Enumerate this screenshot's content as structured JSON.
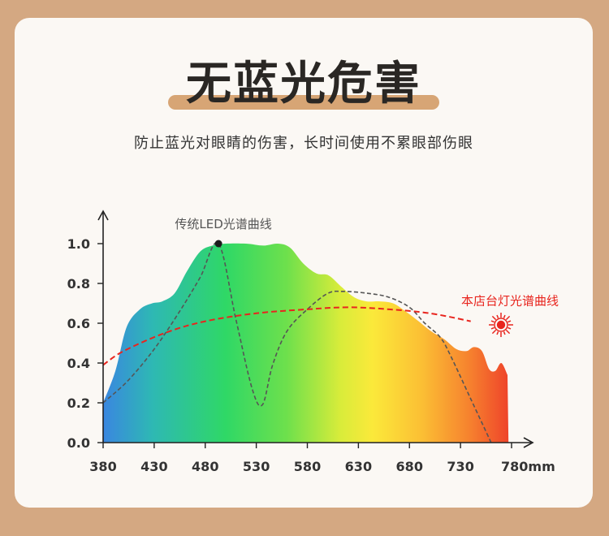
{
  "heading": {
    "title": "无蓝光危害",
    "subtitle": "防止蓝光对眼睛的伤害，长时间使用不累眼部伤眼"
  },
  "colors": {
    "background": "#d4a882",
    "card": "#fbf8f4",
    "title_accent": "#d7a575",
    "store_curve": "#e8251e",
    "led_curve": "#555555",
    "sun_icon": "#e8251e"
  },
  "chart_data": {
    "type": "area",
    "title": "",
    "xlabel": "",
    "ylabel": "",
    "x_unit": "mm",
    "xlim": [
      380,
      780
    ],
    "ylim": [
      0,
      1.0
    ],
    "x_ticks": [
      380,
      430,
      480,
      530,
      580,
      630,
      680,
      730,
      780
    ],
    "x_tick_labels": [
      "380",
      "430",
      "480",
      "530",
      "580",
      "630",
      "680",
      "730",
      "780mm"
    ],
    "y_ticks": [
      0.0,
      0.2,
      0.4,
      0.6,
      0.8,
      1.0
    ],
    "y_tick_labels": [
      "0.0",
      "0.2",
      "0.4",
      "0.6",
      "0.8",
      "1.0"
    ],
    "grid": false,
    "series": [
      {
        "name": "",
        "style": "filled spectrum gradient",
        "points": [
          [
            380,
            0.2
          ],
          [
            392,
            0.36
          ],
          [
            403,
            0.58
          ],
          [
            416,
            0.67
          ],
          [
            428,
            0.7
          ],
          [
            438,
            0.71
          ],
          [
            450,
            0.75
          ],
          [
            462,
            0.86
          ],
          [
            475,
            0.96
          ],
          [
            487,
            0.99
          ],
          [
            500,
            1.0
          ],
          [
            520,
            1.0
          ],
          [
            537,
            0.99
          ],
          [
            551,
            1.0
          ],
          [
            563,
            0.98
          ],
          [
            576,
            0.9
          ],
          [
            589,
            0.85
          ],
          [
            601,
            0.84
          ],
          [
            614,
            0.78
          ],
          [
            626,
            0.73
          ],
          [
            638,
            0.71
          ],
          [
            651,
            0.71
          ],
          [
            664,
            0.7
          ],
          [
            676,
            0.66
          ],
          [
            689,
            0.61
          ],
          [
            701,
            0.56
          ],
          [
            714,
            0.52
          ],
          [
            726,
            0.47
          ],
          [
            736,
            0.46
          ],
          [
            743,
            0.48
          ],
          [
            751,
            0.46
          ],
          [
            758,
            0.37
          ],
          [
            764,
            0.36
          ],
          [
            770,
            0.4
          ],
          [
            776,
            0.34
          ],
          [
            777,
            0.0
          ]
        ]
      },
      {
        "name": "传统LED光谱曲线",
        "style": "dashed",
        "points": [
          [
            380,
            0.2
          ],
          [
            404,
            0.31
          ],
          [
            430,
            0.47
          ],
          [
            455,
            0.66
          ],
          [
            475,
            0.83
          ],
          [
            493,
            1.0
          ],
          [
            510,
            0.62
          ],
          [
            526,
            0.27
          ],
          [
            536,
            0.19
          ],
          [
            546,
            0.39
          ],
          [
            560,
            0.56
          ],
          [
            580,
            0.67
          ],
          [
            600,
            0.75
          ],
          [
            615,
            0.76
          ],
          [
            640,
            0.75
          ],
          [
            660,
            0.73
          ],
          [
            680,
            0.68
          ],
          [
            695,
            0.6
          ],
          [
            710,
            0.53
          ],
          [
            720,
            0.44
          ],
          [
            740,
            0.22
          ],
          [
            760,
            0.0
          ]
        ]
      },
      {
        "name": "本店台灯光谱曲线",
        "style": "dashed",
        "points": [
          [
            380,
            0.39
          ],
          [
            400,
            0.46
          ],
          [
            440,
            0.55
          ],
          [
            480,
            0.61
          ],
          [
            530,
            0.65
          ],
          [
            580,
            0.67
          ],
          [
            620,
            0.68
          ],
          [
            660,
            0.67
          ],
          [
            700,
            0.65
          ],
          [
            740,
            0.61
          ],
          [
            770,
            0.59
          ]
        ]
      }
    ],
    "annotations": [
      {
        "text": "传统LED光谱曲线",
        "series": "传统LED光谱曲线",
        "x": 493,
        "y": 1.0
      },
      {
        "text": "本店台灯光谱曲线",
        "series": "本店台灯光谱曲线",
        "x": 770,
        "y": 0.59
      }
    ]
  }
}
